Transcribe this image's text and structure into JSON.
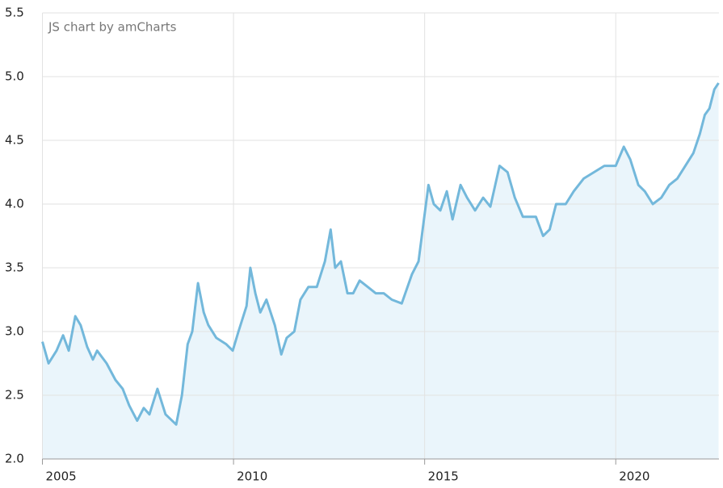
{
  "chart_data": {
    "type": "area-line",
    "credit": "JS chart by amCharts",
    "x": [
      2005.0,
      2005.16,
      2005.37,
      2005.54,
      2005.69,
      2005.86,
      2006.0,
      2006.17,
      2006.32,
      2006.43,
      2006.68,
      2006.91,
      2007.1,
      2007.27,
      2007.48,
      2007.65,
      2007.8,
      2008.01,
      2008.22,
      2008.5,
      2008.65,
      2008.8,
      2008.92,
      2009.07,
      2009.22,
      2009.34,
      2009.55,
      2009.81,
      2009.98,
      2010.13,
      2010.34,
      2010.44,
      2010.57,
      2010.7,
      2010.86,
      2011.08,
      2011.25,
      2011.39,
      2011.59,
      2011.75,
      2011.96,
      2012.18,
      2012.39,
      2012.54,
      2012.66,
      2012.81,
      2012.98,
      2013.13,
      2013.3,
      2013.51,
      2013.72,
      2013.93,
      2014.14,
      2014.4,
      2014.67,
      2014.84,
      2014.97,
      2015.1,
      2015.24,
      2015.41,
      2015.58,
      2015.73,
      2015.94,
      2016.11,
      2016.32,
      2016.53,
      2016.72,
      2016.96,
      2017.17,
      2017.36,
      2017.57,
      2017.74,
      2017.91,
      2018.1,
      2018.27,
      2018.44,
      2018.69,
      2018.9,
      2019.16,
      2019.43,
      2019.7,
      2020.0,
      2020.21,
      2020.38,
      2020.59,
      2020.76,
      2020.97,
      2021.19,
      2021.4,
      2021.61,
      2021.82,
      2022.03,
      2022.2,
      2022.33,
      2022.45,
      2022.58,
      2022.69
    ],
    "values": [
      2.92,
      2.75,
      2.85,
      2.97,
      2.85,
      3.12,
      3.05,
      2.88,
      2.78,
      2.85,
      2.75,
      2.62,
      2.55,
      2.42,
      2.3,
      2.4,
      2.35,
      2.55,
      2.35,
      2.27,
      2.5,
      2.9,
      3.0,
      3.38,
      3.15,
      3.05,
      2.95,
      2.9,
      2.85,
      3.0,
      3.2,
      3.5,
      3.3,
      3.15,
      3.25,
      3.05,
      2.82,
      2.95,
      3.0,
      3.25,
      3.35,
      3.35,
      3.55,
      3.8,
      3.5,
      3.55,
      3.3,
      3.3,
      3.4,
      3.35,
      3.3,
      3.3,
      3.25,
      3.22,
      3.45,
      3.55,
      3.85,
      4.15,
      4.0,
      3.95,
      4.1,
      3.88,
      4.15,
      4.05,
      3.95,
      4.05,
      3.98,
      4.3,
      4.25,
      4.05,
      3.9,
      3.9,
      3.9,
      3.75,
      3.8,
      4.0,
      4.0,
      4.1,
      4.2,
      4.25,
      4.3,
      4.3,
      4.45,
      4.35,
      4.15,
      4.1,
      4.0,
      4.05,
      4.15,
      4.2,
      4.3,
      4.4,
      4.55,
      4.7,
      4.75,
      4.9,
      4.95
    ],
    "color": "#73b8db",
    "fill_color": "#eaf5fb",
    "xlim": [
      2005,
      2022.7
    ],
    "xticks": [
      2005,
      2010,
      2015,
      2020
    ],
    "ylim": [
      2,
      5.5
    ],
    "yticks": [
      {
        "value": 2,
        "label": "2.0"
      },
      2.5,
      {
        "value": 3,
        "label": "3.0"
      },
      3.5,
      {
        "value": 4,
        "label": "4.0"
      },
      4.5,
      {
        "value": 5,
        "label": "5.0"
      },
      5.5
    ],
    "grid": true
  }
}
